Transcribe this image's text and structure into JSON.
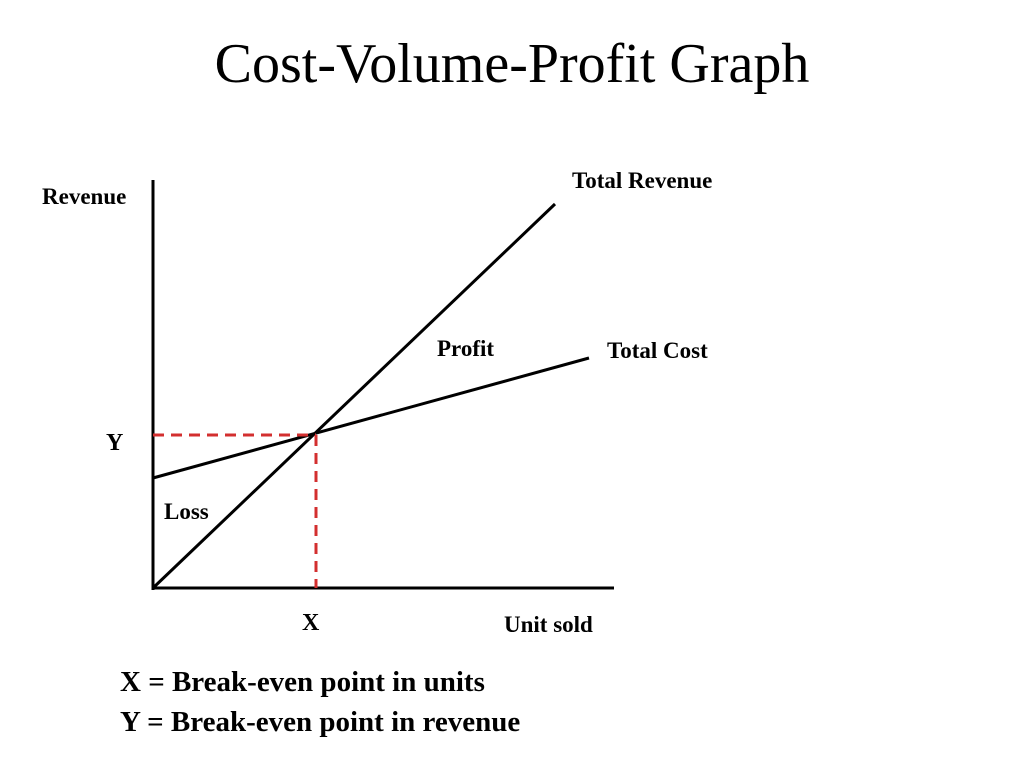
{
  "title": "Cost-Volume-Profit Graph",
  "axes": {
    "y_label": "Revenue",
    "x_label": "Unit sold"
  },
  "lines": {
    "total_revenue_label": "Total Revenue",
    "total_cost_label": "Total Cost"
  },
  "regions": {
    "profit_label": "Profit",
    "loss_label": "Loss"
  },
  "break_even": {
    "x_marker": "X",
    "y_marker": "Y",
    "guide_color": "#d32f2f"
  },
  "legend": [
    "X = Break-even point in units",
    "Y = Break-even point in revenue"
  ]
}
